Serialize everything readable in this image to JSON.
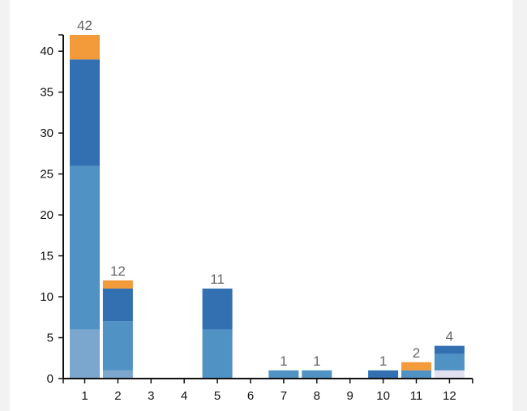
{
  "chart_data": {
    "type": "bar",
    "stacked": true,
    "title": "",
    "xlabel": "",
    "ylabel": "",
    "ylim": [
      0,
      42
    ],
    "yticks": [
      0,
      5,
      10,
      15,
      20,
      25,
      30,
      35,
      40
    ],
    "grid": false,
    "legend": "none",
    "categories": [
      "1",
      "2",
      "3",
      "4",
      "5",
      "6",
      "7",
      "8",
      "9",
      "10",
      "11",
      "12"
    ],
    "series": [
      {
        "color": "#e0e0ef",
        "values": [
          0,
          0,
          0,
          0,
          0,
          0,
          0,
          0,
          0,
          0,
          0,
          1
        ]
      },
      {
        "color": "#7ba7cf",
        "values": [
          6,
          1,
          0,
          0,
          0,
          0,
          0,
          0,
          0,
          0,
          0,
          0
        ]
      },
      {
        "color": "#5092c4",
        "values": [
          20,
          6,
          0,
          0,
          6,
          0,
          1,
          1,
          0,
          0,
          1,
          2
        ]
      },
      {
        "color": "#3270b2",
        "values": [
          13,
          4,
          0,
          0,
          5,
          0,
          0,
          0,
          0,
          1,
          0,
          1
        ]
      },
      {
        "color": "#f39a3a",
        "values": [
          3,
          1,
          0,
          0,
          0,
          0,
          0,
          0,
          0,
          0,
          1,
          0
        ]
      }
    ],
    "totals": [
      "42",
      "12",
      "",
      "",
      "11",
      "",
      "1",
      "1",
      "",
      "1",
      "2",
      "4"
    ]
  }
}
